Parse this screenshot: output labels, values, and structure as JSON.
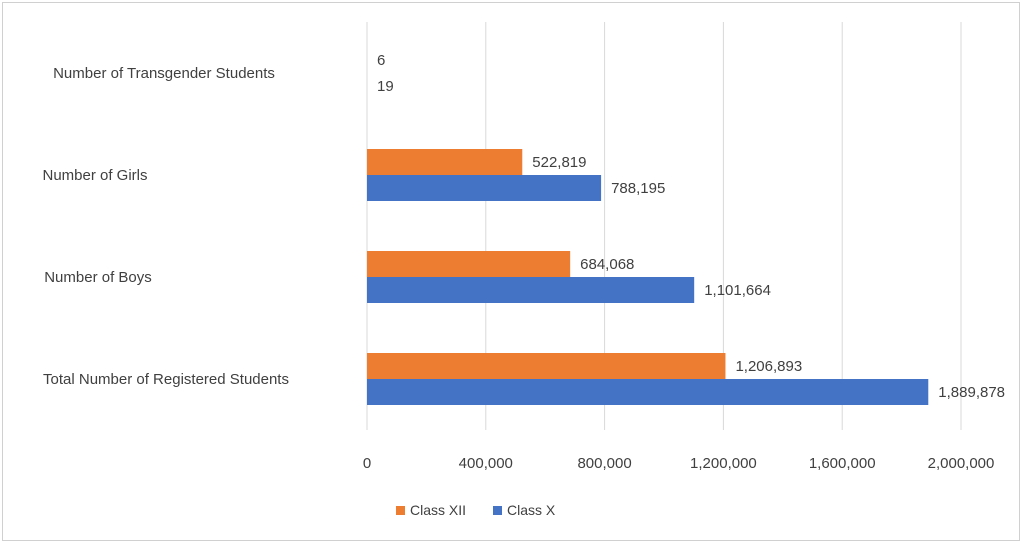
{
  "chart_data": {
    "type": "bar",
    "orientation": "horizontal",
    "categories": [
      "Total Number of Registered Students",
      "Number of Boys",
      "Number of Girls",
      "Number of Transgender Students"
    ],
    "series": [
      {
        "name": "Class XII",
        "color": "#ED7D31",
        "values": [
          1206893,
          684068,
          522819,
          6
        ],
        "labels": [
          "1,206,893",
          "684,068",
          "522,819",
          "6"
        ]
      },
      {
        "name": "Class X",
        "color": "#4472C4",
        "values": [
          1889878,
          1101664,
          788195,
          19
        ],
        "labels": [
          "1,889,878",
          "1,101,664",
          "788,195",
          "19"
        ]
      }
    ],
    "xlim": [
      0,
      2000000
    ],
    "xticks": [
      0,
      400000,
      800000,
      1200000,
      1600000,
      2000000
    ],
    "xtick_labels": [
      "0",
      "400,000",
      "800,000",
      "1,200,000",
      "1,600,000",
      "2,000,000"
    ],
    "grid": true,
    "legend_position": "bottom",
    "title": "",
    "xlabel": "",
    "ylabel": ""
  }
}
